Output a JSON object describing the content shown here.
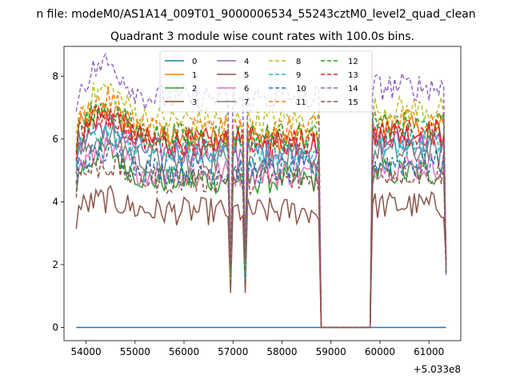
{
  "figure": {
    "suptitle": "n file: modeM0/AS1A14_009T01_9000006534_55243cztM0_level2_quad_clean"
  },
  "chart_data": {
    "type": "line",
    "title": "Quadrant 3 module wise count rates with 100.0s bins.",
    "xlabel": "",
    "ylabel": "",
    "x_offset_label": "+5.033e8",
    "xlim": [
      53550,
      61650
    ],
    "ylim": [
      -0.42,
      8.95
    ],
    "xticks": [
      54000,
      55000,
      56000,
      57000,
      58000,
      59000,
      60000,
      61000
    ],
    "yticks": [
      0,
      2,
      4,
      6,
      8
    ],
    "grid": false,
    "legend_position": "top-center",
    "legend_columns": 4,
    "segments": [
      {
        "start": 53800,
        "end": 58750
      },
      {
        "start": 58800,
        "end": 59800
      },
      {
        "start": 59850,
        "end": 61350
      }
    ],
    "dip_positions": [
      56950,
      57250
    ],
    "series": [
      {
        "name": "0",
        "color": "#1f77b4",
        "dash": "solid",
        "flat": 0
      },
      {
        "name": "1",
        "color": "#ff7f0e",
        "dash": "solid",
        "base": 6.0,
        "peak_scale": 1.15
      },
      {
        "name": "2",
        "color": "#2ca02c",
        "dash": "solid",
        "base": 4.7,
        "peak_scale": 1.2
      },
      {
        "name": "3",
        "color": "#d62728",
        "dash": "solid",
        "base": 5.9,
        "peak_scale": 1.15
      },
      {
        "name": "4",
        "color": "#9467bd",
        "dash": "solid",
        "base": 5.6,
        "peak_scale": 1.15
      },
      {
        "name": "5",
        "color": "#8c564b",
        "dash": "solid",
        "base": 3.7,
        "peak_scale": 1.1
      },
      {
        "name": "6",
        "color": "#e377c2",
        "dash": "solid",
        "base": 4.9,
        "peak_scale": 1.15
      },
      {
        "name": "7",
        "color": "#7f7f7f",
        "dash": "solid",
        "base": 5.3,
        "peak_scale": 1.15
      },
      {
        "name": "8",
        "color": "#bcbd22",
        "dash": "dashed",
        "base": 6.6,
        "peak_scale": 1.15
      },
      {
        "name": "9",
        "color": "#17becf",
        "dash": "dashed",
        "base": 5.6,
        "peak_scale": 1.12
      },
      {
        "name": "10",
        "color": "#1f77b4",
        "dash": "dashed",
        "base": 5.0,
        "peak_scale": 1.12
      },
      {
        "name": "11",
        "color": "#ff7f0e",
        "dash": "dashed",
        "base": 6.3,
        "peak_scale": 1.15
      },
      {
        "name": "12",
        "color": "#2ca02c",
        "dash": "dashed",
        "base": 6.1,
        "peak_scale": 1.15
      },
      {
        "name": "13",
        "color": "#d62728",
        "dash": "dashed",
        "base": 5.9,
        "peak_scale": 1.15
      },
      {
        "name": "14",
        "color": "#9467bd",
        "dash": "dashed",
        "base": 7.3,
        "peak_scale": 1.15
      },
      {
        "name": "15",
        "color": "#8c564b",
        "dash": "dashed",
        "base": 4.7,
        "peak_scale": 1.1
      }
    ]
  }
}
